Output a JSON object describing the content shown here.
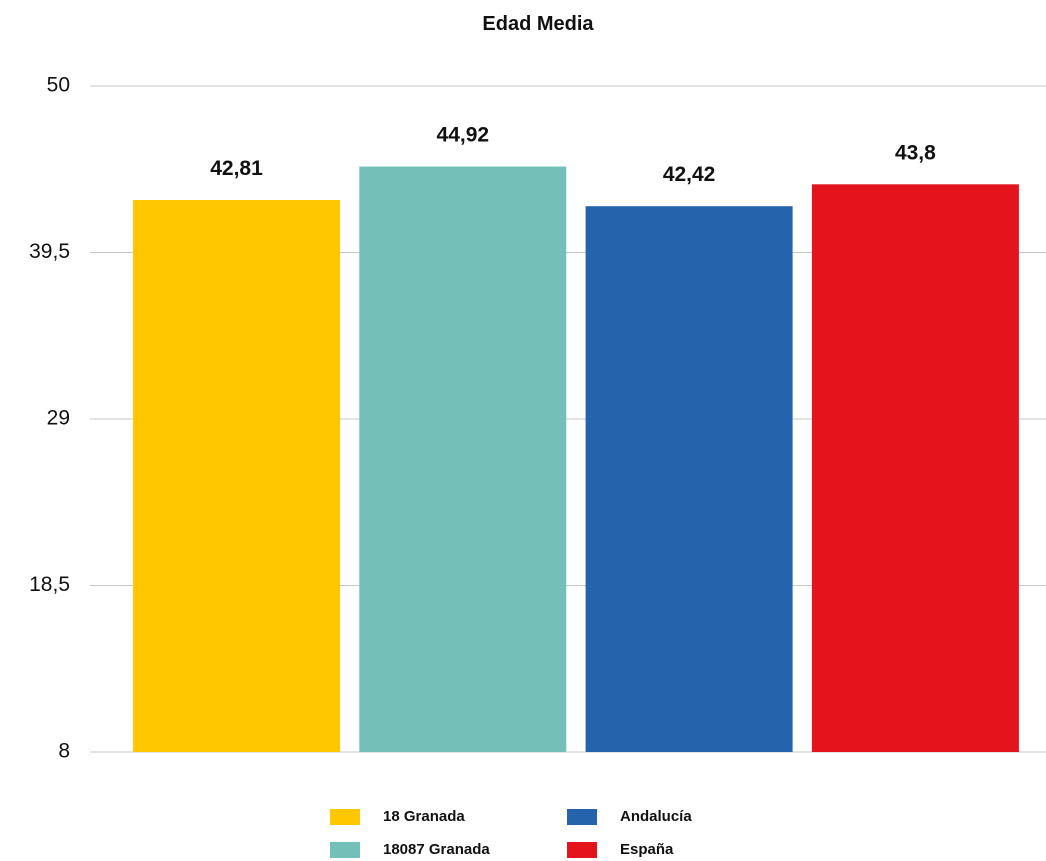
{
  "chart_data": {
    "type": "bar",
    "title": "Edad Media",
    "xlabel": "",
    "ylabel": "",
    "ylim": [
      8,
      50
    ],
    "yticks": [
      8,
      18.5,
      29,
      39.5,
      50
    ],
    "ytick_labels": [
      "8",
      "18,5",
      "29",
      "39,5",
      "50"
    ],
    "grid": true,
    "legend_position": "bottom",
    "series": [
      {
        "name": "18 Granada",
        "value": 42.81,
        "label": "42,81",
        "color": "#FEC700"
      },
      {
        "name": "18087 Granada",
        "value": 44.92,
        "label": "44,92",
        "color": "#74BFB8"
      },
      {
        "name": "Andalucía",
        "value": 42.42,
        "label": "42,42",
        "color": "#2563AD"
      },
      {
        "name": "España",
        "value": 43.8,
        "label": "43,8",
        "color": "#E3141C"
      }
    ]
  }
}
